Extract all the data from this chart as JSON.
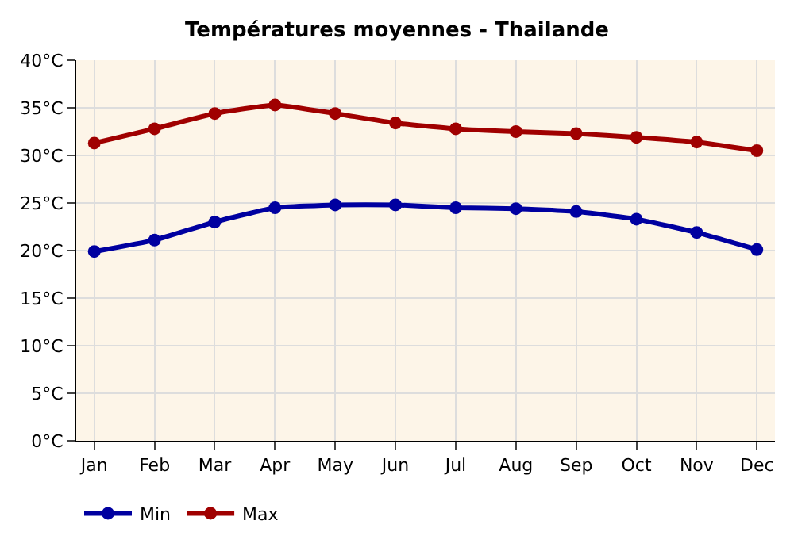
{
  "chart_data": {
    "type": "line",
    "title": "Températures moyennes - Thailande",
    "categories": [
      "Jan",
      "Feb",
      "Mar",
      "Apr",
      "May",
      "Jun",
      "Jul",
      "Aug",
      "Sep",
      "Oct",
      "Nov",
      "Dec"
    ],
    "series": [
      {
        "name": "Min",
        "color": "#0000a0",
        "values": [
          19.9,
          21.1,
          23.0,
          24.5,
          24.8,
          24.8,
          24.5,
          24.4,
          24.1,
          23.3,
          21.9,
          20.1
        ]
      },
      {
        "name": "Max",
        "color": "#a00000",
        "values": [
          31.3,
          32.8,
          34.4,
          35.3,
          34.4,
          33.4,
          32.8,
          32.5,
          32.3,
          31.9,
          31.4,
          30.5
        ]
      }
    ],
    "ylim": [
      0,
      40
    ],
    "yticks": [
      {
        "value": 0,
        "label": "0°C"
      },
      {
        "value": 5,
        "label": "5°C"
      },
      {
        "value": 10,
        "label": "10°C"
      },
      {
        "value": 15,
        "label": "15°C"
      },
      {
        "value": 20,
        "label": "20°C"
      },
      {
        "value": 25,
        "label": "25°C"
      },
      {
        "value": 30,
        "label": "30°C"
      },
      {
        "value": 35,
        "label": "35°C"
      },
      {
        "value": 40,
        "label": "40°C"
      }
    ],
    "grid": true,
    "legend": "bottom left",
    "marker": "circle",
    "line_style": "solid"
  }
}
